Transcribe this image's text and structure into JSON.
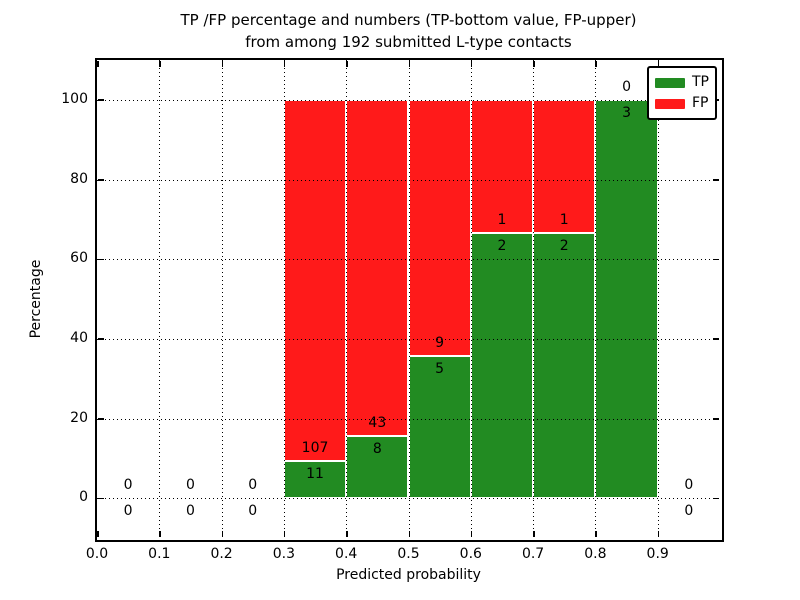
{
  "figure": {
    "background": "#ffffff",
    "text_color": "#000000",
    "spine_color": "#000000",
    "grid_color": "#000000"
  },
  "chart_data": {
    "type": "bar",
    "stacked": true,
    "title_line1": "TP /FP percentage and numbers (TP-bottom value, FP-upper)",
    "title_line2": "from among 192 submitted L-type contacts",
    "xlabel": "Predicted probability",
    "ylabel": "Percentage",
    "xlim": [
      0.0,
      1.0
    ],
    "ylim": [
      -10,
      110
    ],
    "grid": true,
    "grid_style": "dotted",
    "total_contacts": 192,
    "xticks": [
      {
        "v": 0.0,
        "label": "0.0"
      },
      {
        "v": 0.1,
        "label": "0.1"
      },
      {
        "v": 0.2,
        "label": "0.2"
      },
      {
        "v": 0.3,
        "label": "0.3"
      },
      {
        "v": 0.4,
        "label": "0.4"
      },
      {
        "v": 0.5,
        "label": "0.5"
      },
      {
        "v": 0.6,
        "label": "0.6"
      },
      {
        "v": 0.7,
        "label": "0.7"
      },
      {
        "v": 0.8,
        "label": "0.8"
      },
      {
        "v": 0.9,
        "label": "0.9"
      }
    ],
    "yticks": [
      {
        "v": 0,
        "label": "0"
      },
      {
        "v": 20,
        "label": "20"
      },
      {
        "v": 40,
        "label": "40"
      },
      {
        "v": 60,
        "label": "60"
      },
      {
        "v": 80,
        "label": "80"
      },
      {
        "v": 100,
        "label": "100"
      }
    ],
    "legend": {
      "position": "upper right",
      "entries": [
        {
          "name": "TP",
          "color": "#228b22"
        },
        {
          "name": "FP",
          "color": "#ff1a1a"
        }
      ]
    },
    "tp_color": "#228b22",
    "fp_color": "#ff1a1a",
    "bins": [
      {
        "range": [
          0.0,
          0.1
        ],
        "tp": 0,
        "fp": 0
      },
      {
        "range": [
          0.1,
          0.2
        ],
        "tp": 0,
        "fp": 0
      },
      {
        "range": [
          0.2,
          0.3
        ],
        "tp": 0,
        "fp": 0
      },
      {
        "range": [
          0.3,
          0.4
        ],
        "tp": 11,
        "fp": 107
      },
      {
        "range": [
          0.4,
          0.5
        ],
        "tp": 8,
        "fp": 43
      },
      {
        "range": [
          0.5,
          0.6
        ],
        "tp": 5,
        "fp": 9
      },
      {
        "range": [
          0.6,
          0.7
        ],
        "tp": 2,
        "fp": 1
      },
      {
        "range": [
          0.7,
          0.8
        ],
        "tp": 2,
        "fp": 1
      },
      {
        "range": [
          0.8,
          0.9
        ],
        "tp": 3,
        "fp": 0
      },
      {
        "range": [
          0.9,
          1.0
        ],
        "tp": 0,
        "fp": 0
      }
    ]
  }
}
